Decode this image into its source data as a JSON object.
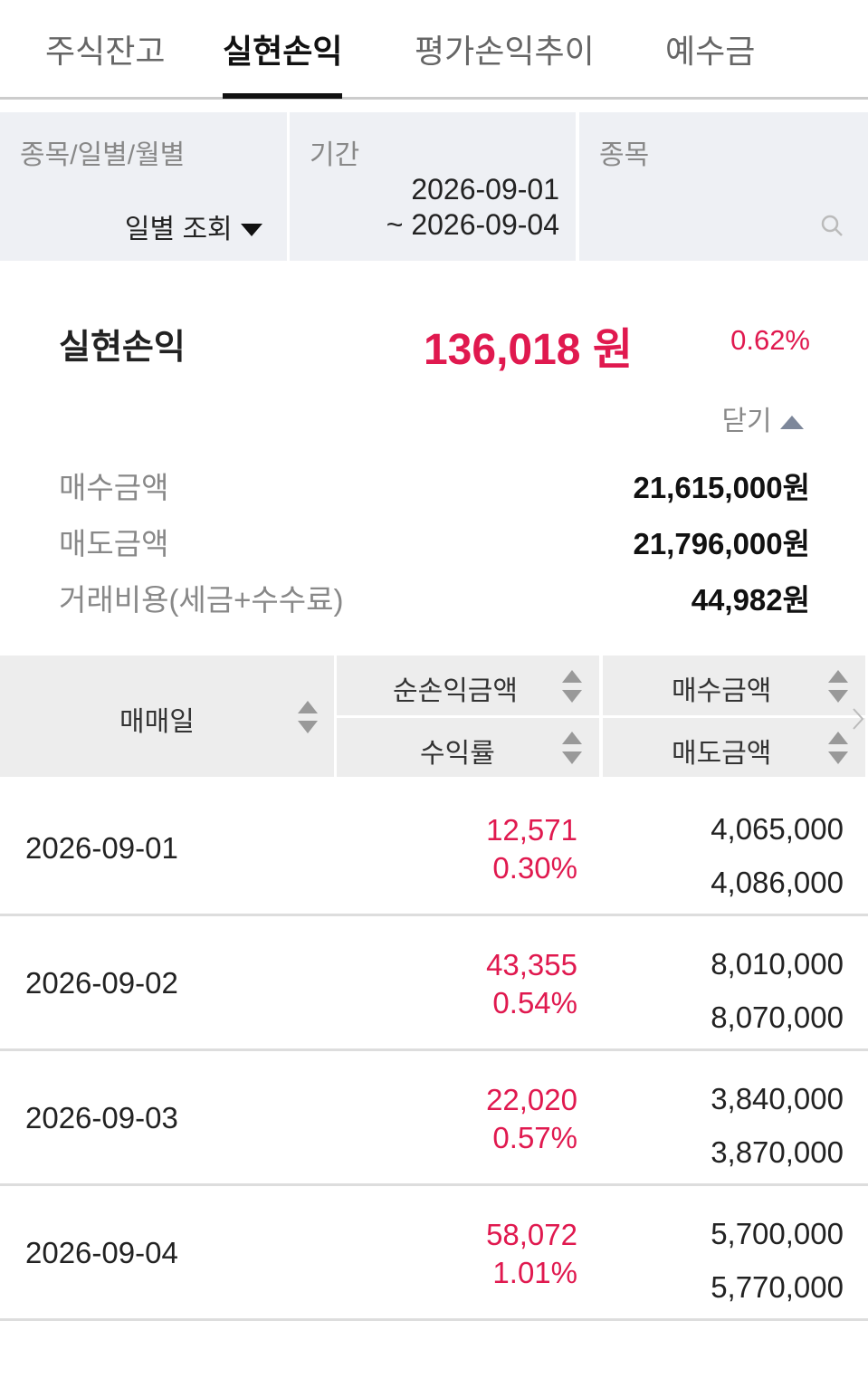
{
  "tabs": [
    {
      "label": "주식잔고",
      "active": false
    },
    {
      "label": "실현손익",
      "active": true
    },
    {
      "label": "평가손익추이",
      "active": false
    },
    {
      "label": "예수금",
      "active": false
    }
  ],
  "filters": {
    "view_label": "종목/일별/월별",
    "view_value": "일별 조회",
    "period_label": "기간",
    "period_start": "2026-09-01",
    "period_end": "~ 2026-09-04",
    "stock_label": "종목"
  },
  "summary": {
    "label": "실현손익",
    "amount": "136,018 원",
    "rate": "0.62%",
    "toggle": "닫기",
    "rows": [
      {
        "label": "매수금액",
        "value": "21,615,000원"
      },
      {
        "label": "매도금액",
        "value": "21,796,000원"
      },
      {
        "label": "거래비용(세금+수수료)",
        "value": "44,982원"
      }
    ]
  },
  "table": {
    "headers": {
      "date": "매매일",
      "net_profit": "순손익금액",
      "return": "수익률",
      "buy": "매수금액",
      "sell": "매도금액"
    },
    "rows": [
      {
        "date": "2026-09-01",
        "net_profit": "12,571",
        "return": "0.30%",
        "buy": "4,065,000",
        "sell": "4,086,000"
      },
      {
        "date": "2026-09-02",
        "net_profit": "43,355",
        "return": "0.54%",
        "buy": "8,010,000",
        "sell": "8,070,000"
      },
      {
        "date": "2026-09-03",
        "net_profit": "22,020",
        "return": "0.57%",
        "buy": "3,840,000",
        "sell": "3,870,000"
      },
      {
        "date": "2026-09-04",
        "net_profit": "58,072",
        "return": "1.01%",
        "buy": "5,700,000",
        "sell": "5,770,000"
      }
    ]
  }
}
